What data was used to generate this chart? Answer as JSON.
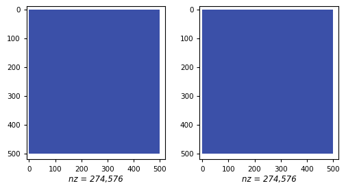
{
  "matrix_size": 500,
  "nz_label": "nz = 274,576",
  "fill_color": "#3b50a8",
  "axis_xlim": [
    -10,
    520
  ],
  "axis_ylim": [
    -10,
    520
  ],
  "xticks": [
    0,
    100,
    200,
    300,
    400,
    500
  ],
  "yticks": [
    0,
    100,
    200,
    300,
    400,
    500
  ],
  "bg_color": "#ffffff",
  "label_fontsize": 7.5,
  "nz_fontsize": 8.5
}
